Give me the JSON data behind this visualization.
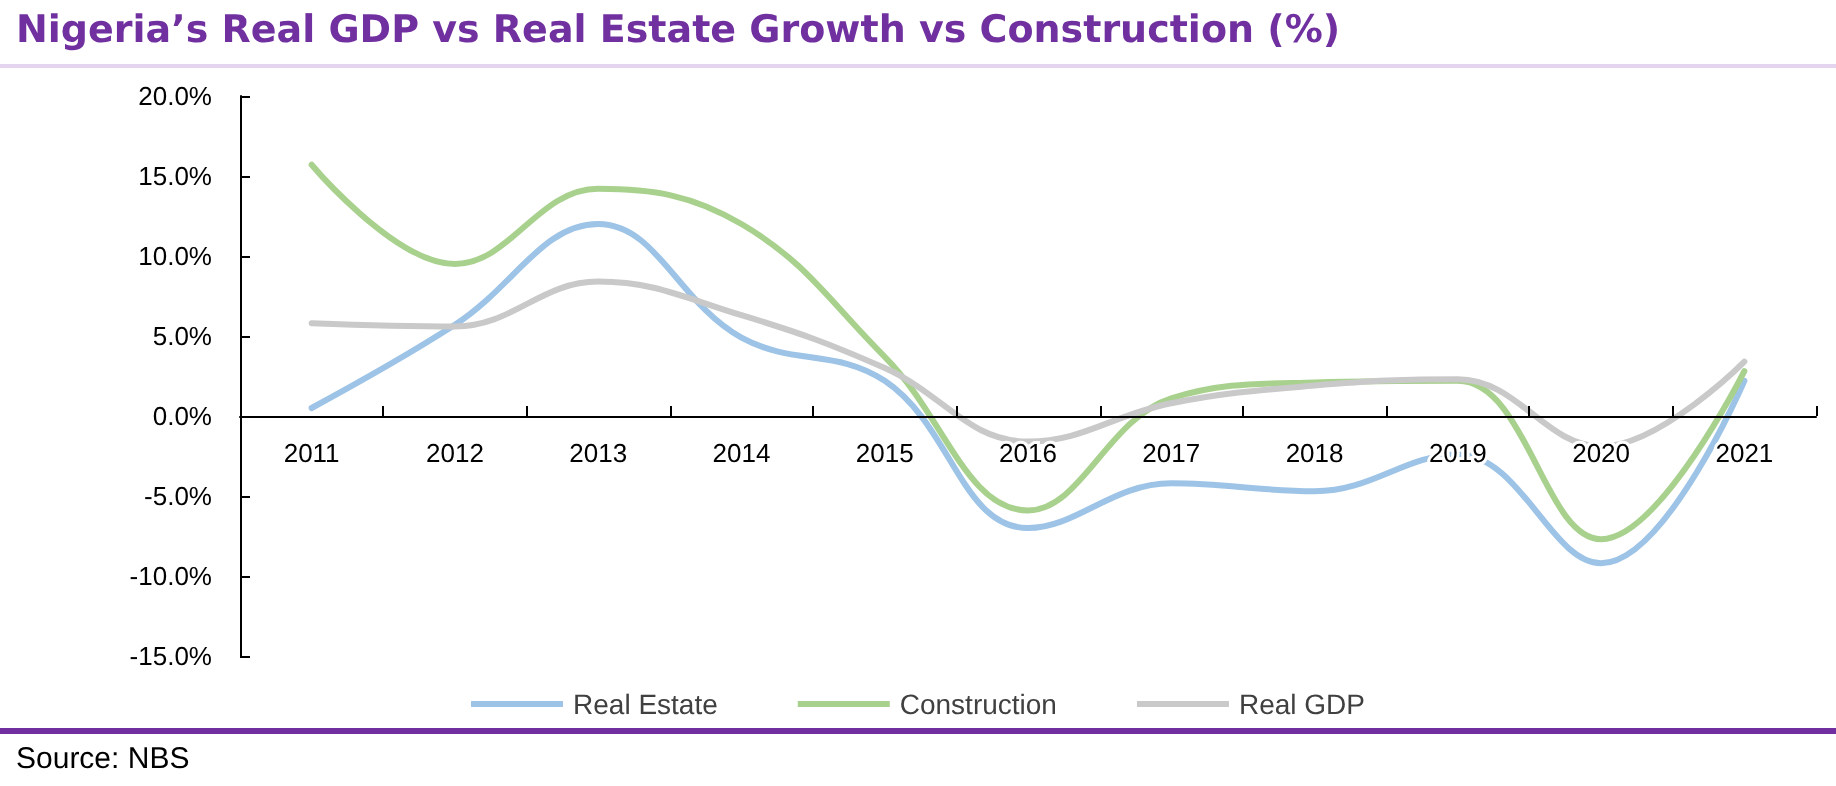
{
  "chart_data": {
    "type": "line",
    "title": "Nigeria’s Real GDP vs Real Estate Growth vs Construction (%)",
    "categories": [
      "2011",
      "2012",
      "2013",
      "2014",
      "2015",
      "2016",
      "2017",
      "2018",
      "2019",
      "2020",
      "2021"
    ],
    "series": [
      {
        "name": "Real Estate",
        "color": "#9dc3e6",
        "values": [
          0.5,
          5.7,
          12.0,
          4.9,
          2.2,
          -7.0,
          -4.2,
          -4.7,
          -2.4,
          -9.2,
          2.2
        ]
      },
      {
        "name": "Construction",
        "color": "#a9d18e",
        "values": [
          15.7,
          9.5,
          14.2,
          12.0,
          3.7,
          -5.9,
          1.1,
          2.1,
          2.2,
          -7.7,
          2.8
        ]
      },
      {
        "name": "Real GDP",
        "color": "#c9c9c9",
        "values": [
          5.8,
          5.6,
          8.4,
          6.3,
          3.0,
          -1.6,
          0.8,
          1.9,
          2.3,
          -1.9,
          3.4
        ]
      }
    ],
    "ylim": [
      -15,
      20
    ],
    "yticks": [
      {
        "value": -15,
        "label": "-15.0%"
      },
      {
        "value": -10,
        "label": "-10.0%"
      },
      {
        "value": -5,
        "label": "-5.0%"
      },
      {
        "value": 0,
        "label": "0.0%"
      },
      {
        "value": 5,
        "label": "5.0%"
      },
      {
        "value": 10,
        "label": "10.0%"
      },
      {
        "value": 15,
        "label": "15.0%"
      },
      {
        "value": 20,
        "label": "20.0%"
      }
    ],
    "legend": "bottom",
    "marker": "none",
    "line_style": "solid",
    "annotations": [
      "Source: NBS"
    ]
  }
}
